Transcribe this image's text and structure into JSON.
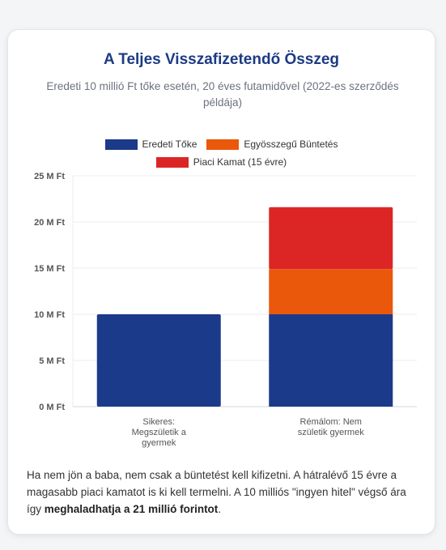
{
  "chart_data": {
    "type": "bar",
    "stacked": true,
    "title": "A Teljes Visszafizetendő Összeg",
    "subtitle": "Eredeti 10 millió Ft tőke esetén, 20 éves futamidővel (2022-es szerződés példája)",
    "categories": [
      "Sikeres: Megszületik a gyermek",
      "Rémálom: Nem születik gyermek"
    ],
    "category_lines": [
      [
        "Sikeres:",
        "Megszületik a",
        "gyermek"
      ],
      [
        "Rémálom: Nem",
        "születik gyermek"
      ]
    ],
    "series": [
      {
        "name": "Eredeti Tőke",
        "values": [
          10,
          10
        ],
        "color": "#1c3a8a"
      },
      {
        "name": "Egyösszegű Büntetés",
        "values": [
          0,
          4.9
        ],
        "color": "#ea580c"
      },
      {
        "name": "Piaci Kamat (15 évre)",
        "values": [
          0,
          6.7
        ],
        "color": "#dc2626"
      }
    ],
    "ylim": [
      0,
      25
    ],
    "yticks": [
      0,
      5,
      10,
      15,
      20,
      25
    ],
    "ytick_labels": [
      "0 M Ft",
      "5 M Ft",
      "10 M Ft",
      "15 M Ft",
      "20 M Ft",
      "25 M Ft"
    ],
    "xlabel": "",
    "ylabel": "",
    "grid": true,
    "legend_position": "top"
  },
  "footer": {
    "text_before": "Ha nem jön a baba, nem csak a büntetést kell kifizetni. A hátralévő 15 évre a magasabb piaci kamatot is ki kell termelni. A 10 milliós \"ingyen hitel\" végső ára így ",
    "bold": "meghaladhatja a 21 millió forintot",
    "text_after": "."
  }
}
